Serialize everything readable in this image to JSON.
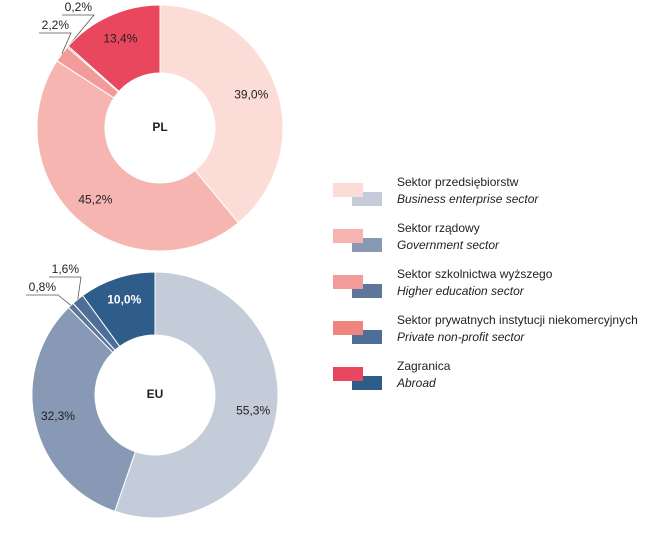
{
  "chart_data": [
    {
      "type": "pie",
      "center_label": "PL",
      "values": [
        39.0,
        45.2,
        2.2,
        0.2,
        13.4
      ],
      "value_labels": [
        "39,0%",
        "45,2%",
        "2,2%",
        "0,2%",
        "13,4%"
      ],
      "colors": [
        "#fcdcd6",
        "#f6b5b0",
        "#f29b98",
        "#f0857f",
        "#e9475e"
      ]
    },
    {
      "type": "pie",
      "center_label": "EU",
      "values": [
        55.3,
        32.3,
        0.8,
        1.6,
        10.0
      ],
      "value_labels": [
        "55,3%",
        "32,3%",
        "0,8%",
        "1,6%",
        "10,0%"
      ],
      "colors": [
        "#c5ccd9",
        "#8799b4",
        "#5d769a",
        "#4f6e97",
        "#2e5d8a"
      ]
    }
  ],
  "legend": [
    {
      "name": "Sektor przedsiębiorstw",
      "name_en": "Business enterprise sector"
    },
    {
      "name": "Sektor rządowy",
      "name_en": "Government sector"
    },
    {
      "name": "Sektor szkolnictwa wyższego",
      "name_en": "Higher education sector"
    },
    {
      "name": "Sektor prywatnych instytucji niekomercyjnych",
      "name_en": "Private non-profit sector"
    },
    {
      "name": "Zagranica",
      "name_en": "Abroad"
    }
  ]
}
